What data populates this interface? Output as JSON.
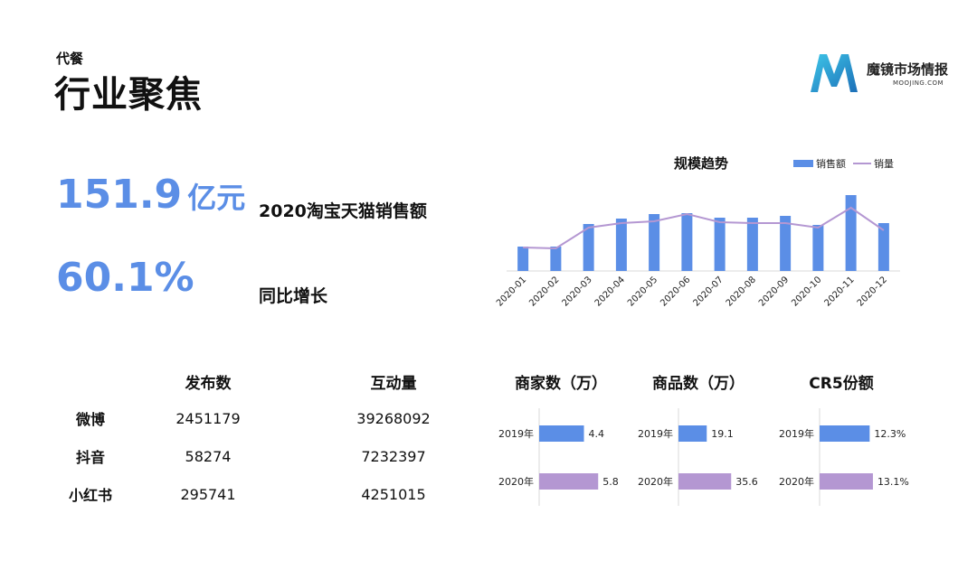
{
  "header": {
    "subtitle": "代餐",
    "title": "行业聚焦",
    "logo_text": "魔镜市场情报",
    "logo_sub": "MOOJING.COM"
  },
  "kpis": [
    {
      "value": "151.9",
      "unit": "亿元",
      "label": "2020淘宝天猫销售额"
    },
    {
      "value": "60.1%",
      "unit": "",
      "label": "同比增长"
    }
  ],
  "social": {
    "headers": [
      "发布数",
      "互动量"
    ],
    "rows": [
      {
        "name": "微博",
        "posts": "2451179",
        "interactions": "39268092"
      },
      {
        "name": "抖音",
        "posts": "58274",
        "interactions": "7232397"
      },
      {
        "name": "小红书",
        "posts": "295741",
        "interactions": "4251015"
      }
    ]
  },
  "colors": {
    "accent": "#5b8ee6",
    "bar": "#5b8ee6",
    "line": "#b497d2",
    "bar2020": "#b497d2"
  },
  "chart_data": [
    {
      "type": "bar",
      "title": "规模趋势",
      "categories": [
        "2020-01",
        "2020-02",
        "2020-03",
        "2020-04",
        "2020-05",
        "2020-06",
        "2020-07",
        "2020-08",
        "2020-09",
        "2020-10",
        "2020-11",
        "2020-12"
      ],
      "series": [
        {
          "name": "销售额",
          "type": "bar",
          "values": [
            27,
            27,
            52,
            58,
            63,
            64,
            59,
            59,
            61,
            51,
            84,
            53
          ]
        },
        {
          "name": "销量",
          "type": "line",
          "values": [
            26,
            25,
            48,
            53,
            55,
            63,
            54,
            53,
            53,
            48,
            70,
            45
          ]
        }
      ],
      "ylim": [
        0,
        100
      ],
      "legend": "top-right",
      "grid": false
    },
    {
      "type": "bar",
      "orientation": "horizontal",
      "title": "商家数（万）",
      "categories": [
        "2019年",
        "2020年"
      ],
      "values": [
        4.4,
        5.8
      ],
      "labels": [
        "4.4",
        "5.8"
      ],
      "xlim": [
        0,
        8
      ]
    },
    {
      "type": "bar",
      "orientation": "horizontal",
      "title": "商品数（万）",
      "categories": [
        "2019年",
        "2020年"
      ],
      "values": [
        19.1,
        35.6
      ],
      "labels": [
        "19.1",
        "35.6"
      ],
      "xlim": [
        0,
        55
      ]
    },
    {
      "type": "bar",
      "orientation": "horizontal",
      "title": "CR5份额",
      "categories": [
        "2019年",
        "2020年"
      ],
      "values": [
        12.3,
        13.1
      ],
      "labels": [
        "12.3%",
        "13.1%"
      ],
      "xlim": [
        0,
        20
      ]
    }
  ]
}
